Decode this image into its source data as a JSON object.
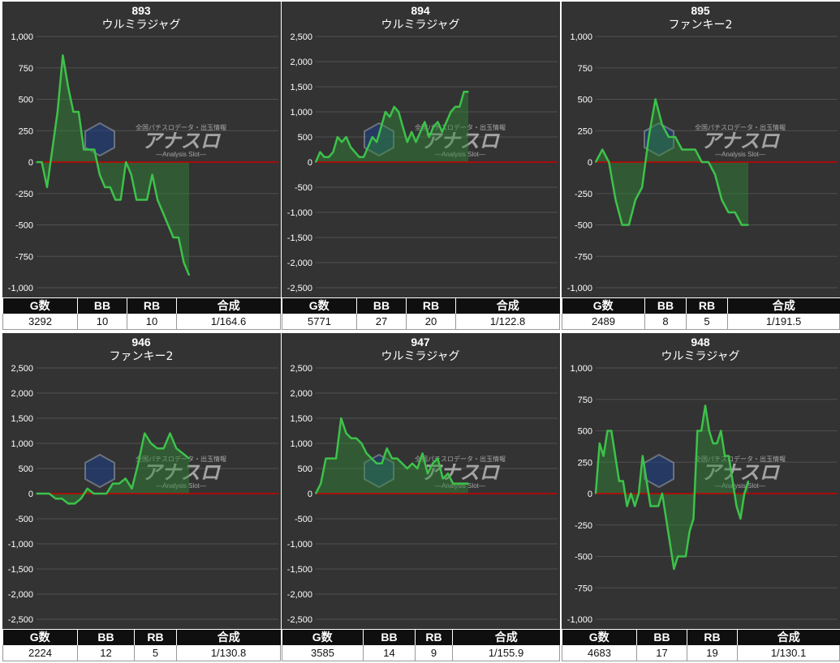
{
  "colors": {
    "background": "#333333",
    "grid": "#505050",
    "zero_line": "#cc0000",
    "line": "#3dc24a",
    "fill": "#2e8a36",
    "header_bg": "#0f0f0f"
  },
  "table_headers": [
    "G数",
    "BB",
    "RB",
    "合成"
  ],
  "watermark": {
    "main": "アナスロ",
    "top": "全国パチスロデータ・出玉情報",
    "bottom": "―Analysis Slot―"
  },
  "panels": [
    {
      "number": "893",
      "machine": "ウルミラジャグ",
      "stats": {
        "games": "3292",
        "bb": "10",
        "rb": "10",
        "combined": "1/164.6"
      },
      "chart_data": {
        "type": "area",
        "ylim": [
          -1000,
          1000
        ],
        "yticks": [
          "-1,000",
          "-750",
          "-500",
          "-250",
          "0",
          "250",
          "500",
          "750",
          "1,000"
        ],
        "values": [
          0,
          0,
          -200,
          100,
          400,
          850,
          600,
          400,
          400,
          100,
          100,
          100,
          -100,
          -200,
          -200,
          -300,
          -300,
          0,
          -100,
          -300,
          -300,
          -300,
          -100,
          -300,
          -400,
          -500,
          -600,
          -600,
          -800,
          -900
        ]
      }
    },
    {
      "number": "894",
      "machine": "ウルミラジャグ",
      "stats": {
        "games": "5771",
        "bb": "27",
        "rb": "20",
        "combined": "1/122.8"
      },
      "chart_data": {
        "type": "area",
        "ylim": [
          -2500,
          2500
        ],
        "yticks": [
          "-2,500",
          "-2,000",
          "-1,500",
          "-1,000",
          "-500",
          "0",
          "500",
          "1,000",
          "1,500",
          "2,000",
          "2,500"
        ],
        "values": [
          0,
          200,
          100,
          100,
          200,
          500,
          400,
          500,
          300,
          200,
          100,
          100,
          300,
          500,
          400,
          700,
          1000,
          900,
          1100,
          1000,
          700,
          400,
          600,
          400,
          600,
          800,
          500,
          700,
          800,
          600,
          800,
          1000,
          1100,
          1100,
          1400,
          1400
        ]
      }
    },
    {
      "number": "895",
      "machine": "ファンキー2",
      "stats": {
        "games": "2489",
        "bb": "8",
        "rb": "5",
        "combined": "1/191.5"
      },
      "chart_data": {
        "type": "area",
        "ylim": [
          -1000,
          1000
        ],
        "yticks": [
          "-1,000",
          "-750",
          "-500",
          "-250",
          "0",
          "250",
          "500",
          "750",
          "1,000"
        ],
        "values": [
          0,
          100,
          0,
          -300,
          -500,
          -500,
          -300,
          -200,
          200,
          500,
          300,
          200,
          200,
          100,
          100,
          100,
          0,
          0,
          -100,
          -300,
          -400,
          -400,
          -500,
          -500
        ]
      }
    },
    {
      "number": "946",
      "machine": "ファンキー2",
      "stats": {
        "games": "2224",
        "bb": "12",
        "rb": "5",
        "combined": "1/130.8"
      },
      "chart_data": {
        "type": "area",
        "ylim": [
          -2500,
          2500
        ],
        "yticks": [
          "-2,500",
          "-2,000",
          "-1,500",
          "-1,000",
          "-500",
          "0",
          "500",
          "1,000",
          "1,500",
          "2,000",
          "2,500"
        ],
        "values": [
          0,
          0,
          0,
          -100,
          -100,
          -200,
          -200,
          -100,
          100,
          0,
          0,
          0,
          200,
          200,
          300,
          100,
          600,
          1200,
          1000,
          900,
          900,
          1200,
          900,
          800,
          700
        ]
      }
    },
    {
      "number": "947",
      "machine": "ウルミラジャグ",
      "stats": {
        "games": "3585",
        "bb": "14",
        "rb": "9",
        "combined": "1/155.9"
      },
      "chart_data": {
        "type": "area",
        "ylim": [
          -2500,
          2500
        ],
        "yticks": [
          "-2,500",
          "-2,000",
          "-1,500",
          "-1,000",
          "-500",
          "0",
          "500",
          "1,000",
          "1,500",
          "2,000",
          "2,500"
        ],
        "values": [
          0,
          200,
          700,
          700,
          700,
          1500,
          1200,
          1100,
          1100,
          1000,
          800,
          700,
          600,
          600,
          900,
          700,
          700,
          600,
          500,
          600,
          500,
          800,
          400,
          600,
          700,
          300,
          400,
          200,
          200,
          200,
          200
        ]
      }
    },
    {
      "number": "948",
      "machine": "ウルミラジャグ",
      "stats": {
        "games": "4683",
        "bb": "17",
        "rb": "19",
        "combined": "1/130.1"
      },
      "chart_data": {
        "type": "area",
        "ylim": [
          -1000,
          1000
        ],
        "yticks": [
          "-1,000",
          "-750",
          "-500",
          "-250",
          "0",
          "250",
          "500",
          "750",
          "1,000"
        ],
        "values": [
          0,
          400,
          300,
          500,
          500,
          300,
          100,
          100,
          -100,
          0,
          -100,
          0,
          300,
          100,
          -100,
          -100,
          -100,
          0,
          -200,
          -400,
          -600,
          -500,
          -500,
          -500,
          -300,
          -200,
          500,
          500,
          700,
          500,
          400,
          400,
          500,
          300,
          300,
          100,
          -100,
          -200,
          0,
          100
        ]
      }
    }
  ]
}
